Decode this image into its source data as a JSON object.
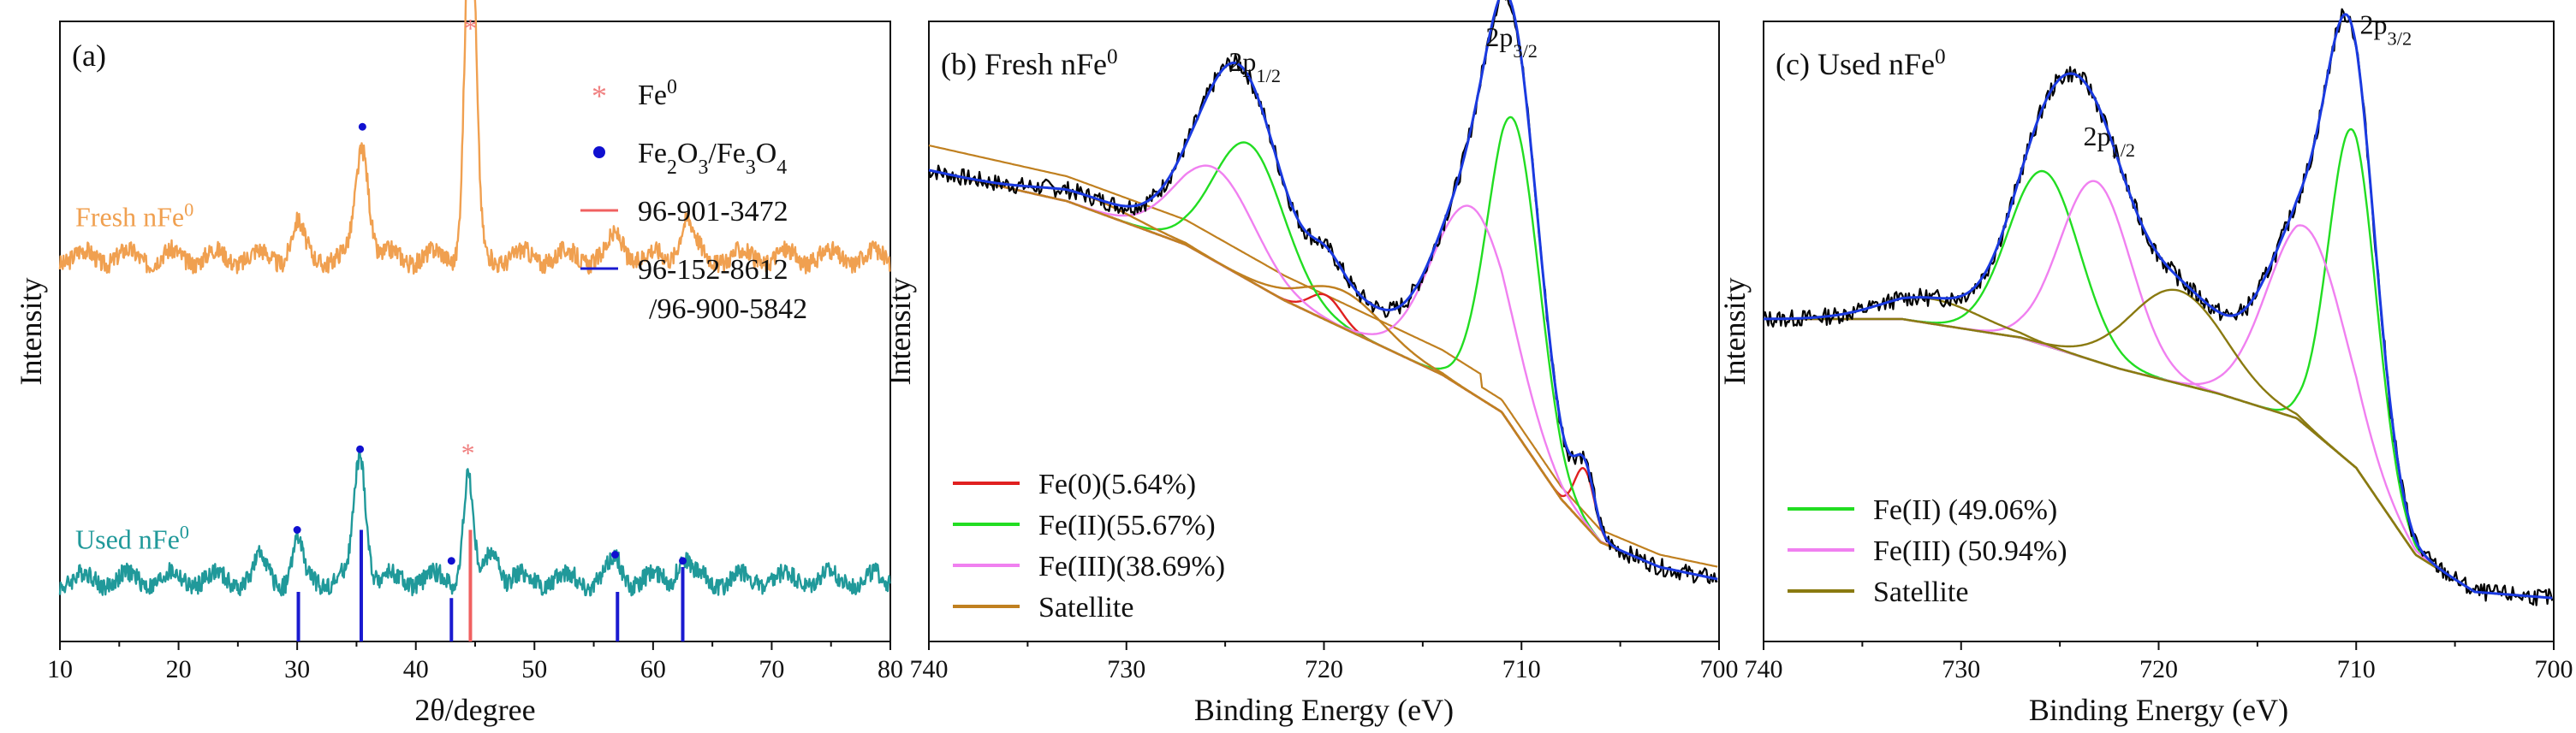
{
  "chart_data": [
    {
      "type": "line",
      "panel": "(a)",
      "xlabel": "2θ/degree",
      "ylabel": "Intensity",
      "xlim": [
        10,
        80
      ],
      "xticks": [
        10,
        20,
        30,
        40,
        50,
        60,
        70,
        80
      ],
      "grid": false,
      "legend_position": "top-right",
      "legend": [
        {
          "marker": "*",
          "label": "Fe",
          "sup": "0",
          "color": "#f08080"
        },
        {
          "marker": "●",
          "label": "Fe2O3/Fe3O4",
          "color": "#1010d0"
        },
        {
          "marker": "line",
          "label": "96-901-3472",
          "color": "#f06060"
        },
        {
          "marker": "line",
          "label": "96-152-8612",
          "label2": "/96-900-5842",
          "color": "#1a1ad0"
        }
      ],
      "series": [
        {
          "name": "Fresh nFe",
          "sup": "0",
          "color": "#f0a050",
          "baseline": 0.62,
          "scale": 1.0,
          "peaks": [
            {
              "x": 30.0,
              "h": 0.05,
              "w": 0.5
            },
            {
              "x": 35.5,
              "h": 0.18,
              "w": 0.55
            },
            {
              "x": 44.6,
              "h": 0.6,
              "w": 0.45
            },
            {
              "x": 57.0,
              "h": 0.03,
              "w": 0.6
            },
            {
              "x": 62.8,
              "h": 0.06,
              "w": 0.6
            }
          ]
        },
        {
          "name": "Used nFe",
          "sup": "0",
          "color": "#20999a",
          "baseline": 0.1,
          "scale": 1.0,
          "peaks": [
            {
              "x": 27.0,
              "h": 0.03,
              "w": 0.5
            },
            {
              "x": 30.0,
              "h": 0.06,
              "w": 0.4
            },
            {
              "x": 35.3,
              "h": 0.2,
              "w": 0.5
            },
            {
              "x": 44.4,
              "h": 0.17,
              "w": 0.4
            },
            {
              "x": 46.5,
              "h": 0.05,
              "w": 0.5
            },
            {
              "x": 56.8,
              "h": 0.03,
              "w": 0.5
            },
            {
              "x": 62.5,
              "h": 0.04,
              "w": 0.5
            }
          ]
        }
      ],
      "reference_sticks": {
        "fe0": [
          {
            "x": 44.6,
            "h": 0.18
          }
        ],
        "oxide": [
          {
            "x": 30.1,
            "h": 0.08
          },
          {
            "x": 35.4,
            "h": 0.18
          },
          {
            "x": 43.0,
            "h": 0.07
          },
          {
            "x": 57.0,
            "h": 0.08
          },
          {
            "x": 62.5,
            "h": 0.12
          }
        ]
      },
      "markers": [
        {
          "type": "star",
          "x": 44.6,
          "y": 0.985
        },
        {
          "type": "dot",
          "x": 35.5,
          "y": 0.83
        },
        {
          "type": "star",
          "x": 44.4,
          "y": 0.3
        },
        {
          "type": "dot",
          "x": 35.3,
          "y": 0.31
        },
        {
          "type": "dot",
          "x": 30.0,
          "y": 0.18
        },
        {
          "type": "dot",
          "x": 43.0,
          "y": 0.13
        },
        {
          "type": "dot",
          "x": 56.8,
          "y": 0.14
        },
        {
          "type": "dot",
          "x": 62.5,
          "y": 0.13
        }
      ]
    },
    {
      "type": "line",
      "panel": "(b)",
      "title": "Fresh nFe",
      "title_sup": "0",
      "xlabel": "Binding Energy (eV)",
      "ylabel": "Intensity",
      "xlim": [
        740,
        700
      ],
      "xticks": [
        740,
        730,
        720,
        710,
        700
      ],
      "grid": false,
      "legend_position": "bottom-left",
      "peak_labels": [
        {
          "text": "2p",
          "sub": "1/2",
          "x": 723.5,
          "y": 0.92
        },
        {
          "text": "2p",
          "sub": "3/2",
          "x": 710.5,
          "y": 0.96
        }
      ],
      "legend": [
        {
          "label": "Fe(0)(5.64%)",
          "color": "#e02020"
        },
        {
          "label": "Fe(II)(55.67%)",
          "color": "#22dd22"
        },
        {
          "label": "Fe(III)(38.69%)",
          "color": "#f080f0"
        },
        {
          "label": "Satellite",
          "color": "#c08020"
        }
      ],
      "background": {
        "name": "Background",
        "color": "#d02020",
        "points": [
          [
            740,
            0.76
          ],
          [
            733,
            0.71
          ],
          [
            727,
            0.64
          ],
          [
            722,
            0.55
          ],
          [
            718,
            0.49
          ],
          [
            714,
            0.43
          ],
          [
            711,
            0.37
          ],
          [
            708,
            0.23
          ],
          [
            706,
            0.16
          ],
          [
            703,
            0.12
          ],
          [
            700,
            0.1
          ]
        ]
      },
      "components": [
        {
          "name": "Fe(0)",
          "color": "#e02020",
          "center": 706.8,
          "height": 0.09,
          "width": 0.5
        },
        {
          "name": "Fe(0) 2p1/2",
          "color": "#e02020",
          "center": 719.9,
          "height": 0.04,
          "width": 0.8
        },
        {
          "name": "Fe(II)",
          "color": "#22dd22",
          "center": 710.4,
          "height": 0.5,
          "width": 1.3
        },
        {
          "name": "Fe(II) 2p1/2",
          "color": "#22dd22",
          "center": 723.8,
          "height": 0.22,
          "width": 1.8
        },
        {
          "name": "Fe(III)",
          "color": "#f080f0",
          "center": 712.5,
          "height": 0.3,
          "width": 2.0
        },
        {
          "name": "Fe(III) 2p1/2",
          "color": "#f080f0",
          "center": 725.5,
          "height": 0.15,
          "width": 2.0
        },
        {
          "name": "Satellite",
          "color": "#c08020",
          "center": 719.0,
          "height": 0.06,
          "width": 2.0
        },
        {
          "name": "Satellite 2",
          "color": "#c08020",
          "center": 732.0,
          "height": 0.02,
          "width": 2.5
        }
      ],
      "fit_color": "#1a3ae0",
      "raw_color": "#000000",
      "seed": 7
    },
    {
      "type": "line",
      "panel": "(c)",
      "title": "Used nFe",
      "title_sup": "0",
      "xlabel": "Binding Energy (eV)",
      "ylabel": "Intensity",
      "xlim": [
        740,
        700
      ],
      "xticks": [
        740,
        730,
        720,
        710,
        700
      ],
      "grid": false,
      "legend_position": "bottom-left",
      "peak_labels": [
        {
          "text": "2p",
          "sub": "1/2",
          "x": 722.5,
          "y": 0.8
        },
        {
          "text": "2p",
          "sub": "3/2",
          "x": 708.5,
          "y": 0.98
        }
      ],
      "legend": [
        {
          "label": "Fe(II) (49.06%)",
          "color": "#22dd22"
        },
        {
          "label": "Fe(III) (50.94%)",
          "color": "#f080f0"
        },
        {
          "label": "Satellite",
          "color": "#8a7a10"
        }
      ],
      "background": {
        "name": "Background",
        "color": "#8a7a10",
        "points": [
          [
            740,
            0.52
          ],
          [
            733,
            0.52
          ],
          [
            727,
            0.49
          ],
          [
            722,
            0.44
          ],
          [
            717,
            0.4
          ],
          [
            713,
            0.36
          ],
          [
            710,
            0.28
          ],
          [
            707,
            0.14
          ],
          [
            704,
            0.08
          ],
          [
            700,
            0.07
          ]
        ]
      },
      "components": [
        {
          "name": "Fe(II)",
          "color": "#22dd22",
          "center": 710.2,
          "height": 0.54,
          "width": 1.2
        },
        {
          "name": "Fe(II) 2p1/2",
          "color": "#22dd22",
          "center": 725.8,
          "height": 0.28,
          "width": 1.8
        },
        {
          "name": "Fe(III)",
          "color": "#f080f0",
          "center": 712.5,
          "height": 0.32,
          "width": 2.0
        },
        {
          "name": "Fe(III) 2p1/2",
          "color": "#f080f0",
          "center": 723.2,
          "height": 0.29,
          "width": 1.8
        },
        {
          "name": "Satellite",
          "color": "#8a7a10",
          "center": 719.0,
          "height": 0.15,
          "width": 2.4
        },
        {
          "name": "Satellite 2",
          "color": "#8a7a10",
          "center": 731.5,
          "height": 0.04,
          "width": 2.5
        }
      ],
      "fit_color": "#1a3ae0",
      "raw_color": "#000000",
      "seed": 13
    }
  ]
}
